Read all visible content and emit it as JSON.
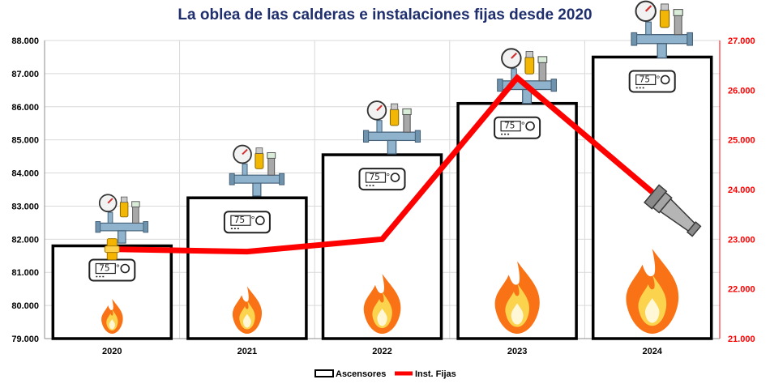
{
  "chart_data": {
    "type": "bar",
    "title": "La oblea de las calderas e instalaciones fijas desde 2020",
    "categories": [
      "2020",
      "2021",
      "2022",
      "2023",
      "2024"
    ],
    "series": [
      {
        "name": "Ascensores",
        "type": "bar",
        "axis": "left",
        "values": [
          81800,
          83250,
          84550,
          86100,
          87500
        ]
      },
      {
        "name": "Inst. Fijas",
        "type": "line",
        "axis": "right",
        "values": [
          22800,
          22750,
          23000,
          26250,
          23950
        ]
      }
    ],
    "y_left": {
      "ylim": [
        79000,
        88000
      ],
      "ticks": [
        "79.000",
        "80.000",
        "81.000",
        "82.000",
        "83.000",
        "84.000",
        "85.000",
        "86.000",
        "87.000",
        "88.000"
      ]
    },
    "y_right": {
      "ylim": [
        21000,
        27000
      ],
      "ticks": [
        "21.000",
        "22.000",
        "23.000",
        "24.000",
        "25.000",
        "26.000",
        "27.000"
      ]
    },
    "grid": true,
    "legend_position": "bottom",
    "boiler_display": "75 °",
    "colors": {
      "bars_stroke": "#000000",
      "line": "#ff0000",
      "right_axis": "#ff0000",
      "title": "#1f2f6e",
      "grid": "#d9d9d9"
    }
  }
}
